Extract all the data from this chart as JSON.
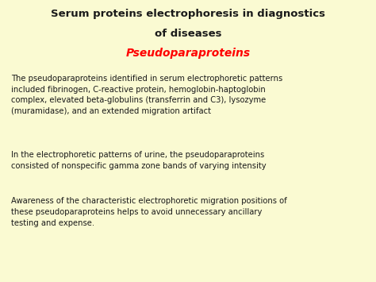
{
  "background_color": "#FAFAD2",
  "title_line1": "Serum proteins electrophoresis in diagnostics",
  "title_line2": "of diseases",
  "title_line3": "Pseudoparaproteins",
  "title_color": "#1a1a1a",
  "subtitle_color": "#ff0000",
  "body_color": "#1a1a1a",
  "bullet1": "The pseudoparaproteins identified in serum electrophoretic patterns\nincluded fibrinogen, C-reactive protein, hemoglobin-haptoglobin\ncomplex, elevated beta-globulins (transferrin and C3), lysozyme\n(muramidase), and an extended migration artifact",
  "bullet2": "In the electrophoretic patterns of urine, the pseudoparaproteins\nconsisted of nonspecific gamma zone bands of varying intensity",
  "bullet3": "Awareness of the characteristic electrophoretic migration positions of\nthese pseudoparaproteins helps to avoid unnecessary ancillary\ntesting and expense.",
  "title_fontsize": 9.5,
  "subtitle_fontsize": 10.0,
  "body_fontsize": 7.2,
  "font_family": "Comic Sans MS"
}
